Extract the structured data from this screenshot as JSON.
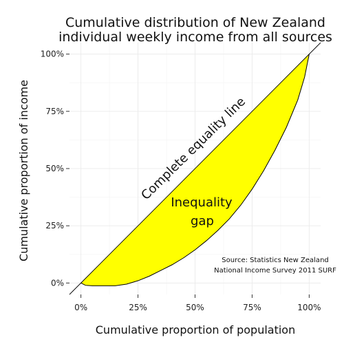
{
  "chart_data": {
    "type": "area",
    "title_lines": [
      "Cumulative distribution of New Zealand",
      "individual weekly income from all sources"
    ],
    "xlabel": "Cumulative proportion of population",
    "ylabel": "Cumulative proportion of income",
    "x_ticks": [
      "0%",
      "25%",
      "50%",
      "75%",
      "100%"
    ],
    "y_ticks": [
      "0%",
      "25%",
      "50%",
      "75%",
      "100%"
    ],
    "xlim": [
      -0.05,
      1.05
    ],
    "ylim": [
      -0.05,
      1.05
    ],
    "grid": true,
    "series": [
      {
        "kind": "lorenz-curve",
        "x": [
          0,
          0.02,
          0.05,
          0.1,
          0.15,
          0.2,
          0.25,
          0.3,
          0.35,
          0.4,
          0.45,
          0.5,
          0.55,
          0.6,
          0.65,
          0.7,
          0.75,
          0.8,
          0.85,
          0.9,
          0.95,
          0.98,
          1.0
        ],
        "y": [
          0,
          -0.01,
          -0.012,
          -0.012,
          -0.012,
          -0.005,
          0.01,
          0.03,
          0.055,
          0.08,
          0.11,
          0.145,
          0.185,
          0.23,
          0.28,
          0.34,
          0.41,
          0.49,
          0.58,
          0.68,
          0.8,
          0.9,
          1.0
        ]
      },
      {
        "kind": "equality-line",
        "x": [
          -0.05,
          1.05
        ],
        "y": [
          -0.05,
          1.05
        ]
      }
    ],
    "fill_color": "#ffff00",
    "annotations": {
      "equality_label": "Complete equality line",
      "gap_line1": "Inequality",
      "gap_line2": "gap",
      "source_line1": "Source: Statistics New Zealand",
      "source_line2": "National Income Survey 2011 SURF"
    }
  }
}
